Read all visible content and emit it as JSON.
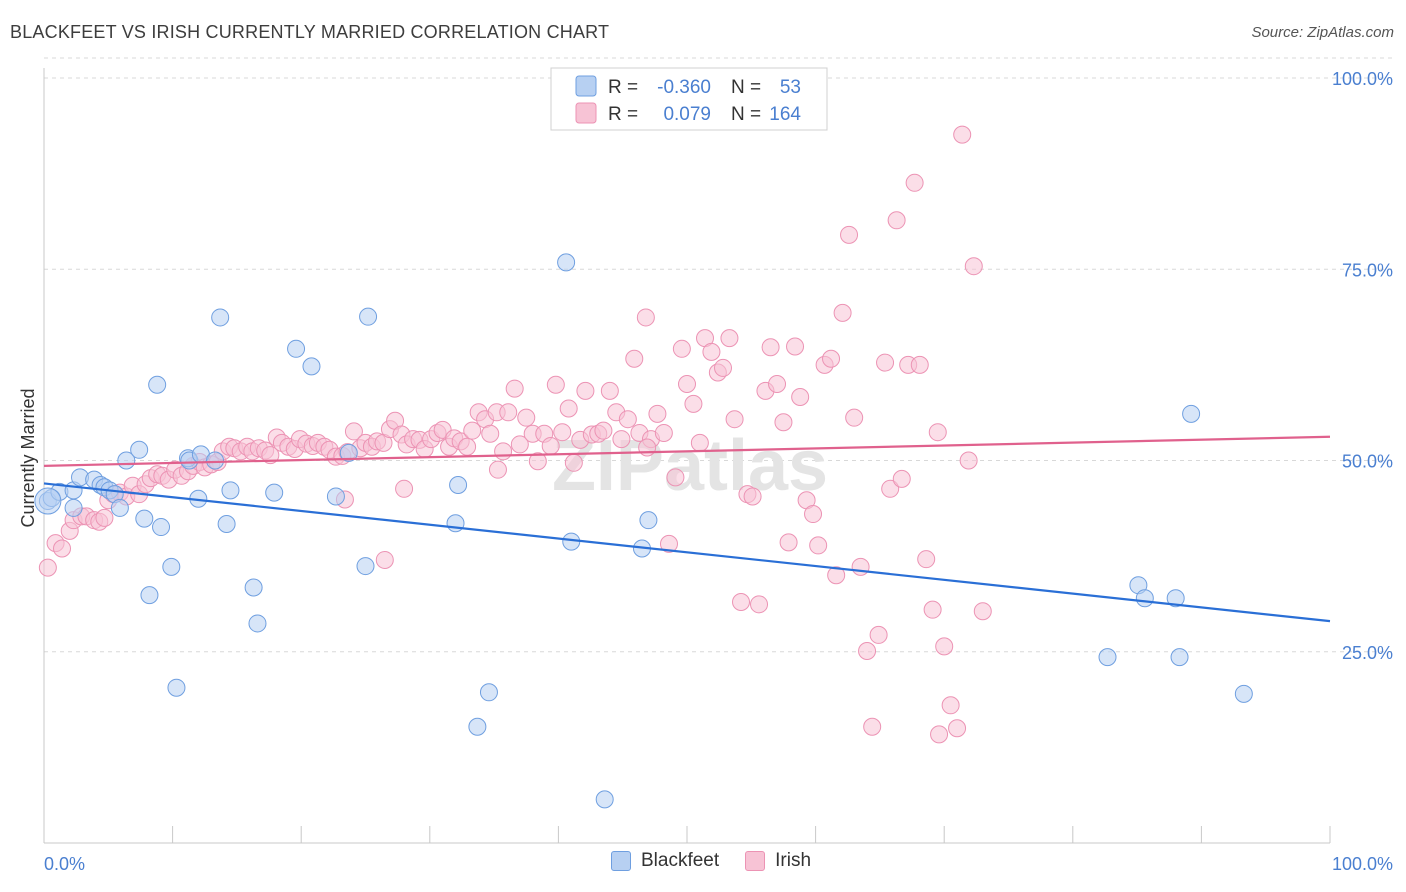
{
  "title": "BLACKFEET VS IRISH CURRENTLY MARRIED CORRELATION CHART",
  "source": "Source: ZipAtlas.com",
  "watermark": "ZIPatlas",
  "colors": {
    "blue_fill": "#b7d0f2",
    "blue_stroke": "#6f9fe0",
    "blue_line": "#2a6fd6",
    "pink_fill": "#f7c3d5",
    "pink_stroke": "#ec93b4",
    "pink_line": "#e0618d",
    "axis_text": "#4a7fd0",
    "grid": "#d8d8d8"
  },
  "legend": {
    "rows": [
      {
        "r_label": "R =",
        "r_value": "-0.360",
        "n_label": "N =",
        "n_value": "53"
      },
      {
        "r_label": "R =",
        "r_value": "0.079",
        "n_label": "N =",
        "n_value": "164"
      }
    ]
  },
  "bottom_legend": [
    "Blackfeet",
    "Irish"
  ],
  "chart_data": {
    "type": "scatter",
    "title": "BLACKFEET VS IRISH CURRENTLY MARRIED CORRELATION CHART",
    "xlabel": "",
    "ylabel": "Currently Married",
    "xlim": [
      0,
      100
    ],
    "ylim": [
      0,
      100
    ],
    "x_tick_labels": [
      "0.0%",
      "100.0%"
    ],
    "y_tick_labels": [
      "25.0%",
      "50.0%",
      "75.0%",
      "100.0%"
    ],
    "y_ticks": [
      25,
      50,
      75,
      100
    ],
    "grid": true,
    "legend_position": "top-center",
    "series": [
      {
        "name": "Blackfeet",
        "r": -0.36,
        "n": 53,
        "trend": {
          "x": [
            0,
            100
          ],
          "y": [
            47.0,
            29.0
          ]
        },
        "points": [
          [
            0.3,
            44.7
          ],
          [
            0.6,
            45.1
          ],
          [
            1.2,
            45.9
          ],
          [
            2.3,
            43.8
          ],
          [
            2.3,
            46.1
          ],
          [
            2.8,
            47.8
          ],
          [
            3.9,
            47.5
          ],
          [
            4.4,
            46.8
          ],
          [
            4.7,
            46.5
          ],
          [
            5.1,
            46.1
          ],
          [
            5.5,
            45.6
          ],
          [
            5.9,
            43.8
          ],
          [
            6.4,
            50.0
          ],
          [
            7.4,
            51.4
          ],
          [
            7.8,
            42.4
          ],
          [
            8.2,
            32.4
          ],
          [
            8.8,
            59.9
          ],
          [
            9.1,
            41.3
          ],
          [
            9.9,
            36.1
          ],
          [
            10.3,
            20.3
          ],
          [
            11.2,
            50.3
          ],
          [
            11.3,
            50.0
          ],
          [
            12.0,
            45.0
          ],
          [
            12.2,
            50.8
          ],
          [
            13.3,
            50.0
          ],
          [
            13.7,
            68.7
          ],
          [
            14.2,
            41.7
          ],
          [
            14.5,
            46.1
          ],
          [
            16.3,
            33.4
          ],
          [
            16.6,
            28.7
          ],
          [
            17.9,
            45.8
          ],
          [
            19.6,
            64.6
          ],
          [
            20.8,
            62.3
          ],
          [
            22.7,
            45.3
          ],
          [
            23.7,
            51.0
          ],
          [
            25.0,
            36.2
          ],
          [
            25.2,
            68.8
          ],
          [
            32.0,
            41.8
          ],
          [
            32.2,
            46.8
          ],
          [
            33.7,
            15.2
          ],
          [
            34.6,
            19.7
          ],
          [
            40.6,
            75.9
          ],
          [
            41.0,
            39.4
          ],
          [
            43.6,
            5.7
          ],
          [
            46.5,
            38.5
          ],
          [
            47.0,
            42.2
          ],
          [
            82.7,
            24.3
          ],
          [
            85.1,
            33.7
          ],
          [
            85.6,
            32.0
          ],
          [
            89.2,
            56.1
          ],
          [
            88.0,
            32.0
          ],
          [
            88.3,
            24.3
          ],
          [
            93.3,
            19.5
          ]
        ]
      },
      {
        "name": "Irish",
        "r": 0.079,
        "n": 164,
        "trend": {
          "x": [
            0,
            100
          ],
          "y": [
            49.3,
            53.1
          ]
        },
        "points": [
          [
            0.3,
            36.0
          ],
          [
            0.9,
            39.2
          ],
          [
            1.4,
            38.5
          ],
          [
            2.0,
            40.8
          ],
          [
            2.3,
            42.2
          ],
          [
            2.9,
            42.7
          ],
          [
            3.3,
            42.7
          ],
          [
            3.9,
            42.2
          ],
          [
            4.3,
            42.0
          ],
          [
            4.7,
            42.5
          ],
          [
            5.0,
            44.8
          ],
          [
            5.4,
            45.6
          ],
          [
            5.9,
            45.8
          ],
          [
            6.4,
            45.3
          ],
          [
            6.9,
            46.7
          ],
          [
            7.4,
            45.6
          ],
          [
            7.9,
            46.9
          ],
          [
            8.3,
            47.7
          ],
          [
            8.8,
            48.2
          ],
          [
            9.2,
            48.0
          ],
          [
            9.7,
            47.5
          ],
          [
            10.2,
            48.8
          ],
          [
            10.7,
            48.0
          ],
          [
            11.2,
            48.6
          ],
          [
            11.6,
            49.3
          ],
          [
            12.1,
            49.8
          ],
          [
            12.5,
            49.1
          ],
          [
            13.0,
            49.5
          ],
          [
            13.5,
            49.8
          ],
          [
            13.9,
            51.2
          ],
          [
            14.4,
            51.8
          ],
          [
            14.8,
            51.6
          ],
          [
            15.3,
            51.2
          ],
          [
            15.8,
            51.8
          ],
          [
            16.2,
            51.2
          ],
          [
            16.7,
            51.6
          ],
          [
            17.2,
            51.3
          ],
          [
            17.6,
            50.7
          ],
          [
            18.1,
            53.0
          ],
          [
            18.5,
            52.3
          ],
          [
            19.0,
            51.8
          ],
          [
            19.5,
            51.5
          ],
          [
            19.9,
            52.8
          ],
          [
            20.4,
            52.2
          ],
          [
            20.9,
            51.9
          ],
          [
            21.3,
            52.3
          ],
          [
            21.8,
            51.8
          ],
          [
            22.2,
            51.4
          ],
          [
            22.7,
            50.5
          ],
          [
            23.2,
            50.6
          ],
          [
            23.6,
            51.1
          ],
          [
            24.1,
            53.8
          ],
          [
            24.6,
            51.6
          ],
          [
            25.0,
            52.3
          ],
          [
            25.5,
            51.8
          ],
          [
            25.9,
            52.5
          ],
          [
            26.4,
            52.3
          ],
          [
            26.9,
            54.1
          ],
          [
            27.3,
            55.2
          ],
          [
            27.8,
            53.4
          ],
          [
            28.2,
            52.1
          ],
          [
            28.7,
            52.8
          ],
          [
            29.2,
            52.7
          ],
          [
            29.6,
            51.5
          ],
          [
            30.1,
            52.8
          ],
          [
            30.6,
            53.6
          ],
          [
            31.0,
            54.0
          ],
          [
            31.5,
            51.8
          ],
          [
            31.9,
            52.9
          ],
          [
            32.4,
            52.5
          ],
          [
            32.9,
            51.8
          ],
          [
            33.3,
            53.9
          ],
          [
            33.8,
            56.3
          ],
          [
            34.3,
            55.4
          ],
          [
            34.7,
            53.5
          ],
          [
            35.2,
            56.3
          ],
          [
            35.7,
            51.2
          ],
          [
            36.1,
            56.3
          ],
          [
            36.6,
            59.4
          ],
          [
            37.0,
            52.1
          ],
          [
            37.5,
            55.6
          ],
          [
            38.0,
            53.5
          ],
          [
            38.4,
            49.9
          ],
          [
            38.9,
            53.5
          ],
          [
            39.4,
            51.9
          ],
          [
            39.8,
            59.9
          ],
          [
            40.3,
            53.7
          ],
          [
            40.8,
            56.8
          ],
          [
            41.2,
            49.7
          ],
          [
            41.7,
            52.7
          ],
          [
            42.1,
            59.1
          ],
          [
            42.6,
            53.4
          ],
          [
            43.1,
            53.5
          ],
          [
            43.5,
            53.9
          ],
          [
            44.0,
            59.1
          ],
          [
            44.5,
            56.3
          ],
          [
            44.9,
            52.8
          ],
          [
            45.4,
            55.4
          ],
          [
            45.9,
            63.3
          ],
          [
            46.3,
            53.6
          ],
          [
            46.8,
            68.7
          ],
          [
            47.2,
            52.8
          ],
          [
            47.7,
            56.1
          ],
          [
            48.2,
            53.6
          ],
          [
            48.6,
            39.1
          ],
          [
            49.1,
            47.8
          ],
          [
            49.6,
            64.6
          ],
          [
            50.0,
            60.0
          ],
          [
            50.5,
            57.4
          ],
          [
            51.0,
            52.3
          ],
          [
            51.4,
            66.0
          ],
          [
            51.9,
            64.2
          ],
          [
            52.4,
            61.5
          ],
          [
            52.8,
            62.1
          ],
          [
            53.3,
            66.0
          ],
          [
            53.7,
            55.4
          ],
          [
            54.2,
            31.5
          ],
          [
            54.7,
            45.6
          ],
          [
            55.1,
            45.3
          ],
          [
            55.6,
            31.2
          ],
          [
            56.1,
            59.1
          ],
          [
            56.5,
            64.8
          ],
          [
            57.0,
            60.0
          ],
          [
            57.5,
            55.0
          ],
          [
            57.9,
            39.3
          ],
          [
            58.4,
            64.9
          ],
          [
            58.8,
            58.3
          ],
          [
            59.3,
            44.8
          ],
          [
            59.8,
            43.0
          ],
          [
            60.2,
            38.9
          ],
          [
            60.7,
            62.5
          ],
          [
            61.2,
            63.3
          ],
          [
            61.6,
            35.0
          ],
          [
            62.1,
            69.3
          ],
          [
            62.6,
            79.5
          ],
          [
            63.0,
            55.6
          ],
          [
            63.5,
            36.1
          ],
          [
            64.0,
            25.1
          ],
          [
            64.4,
            15.2
          ],
          [
            64.9,
            27.2
          ],
          [
            65.4,
            62.8
          ],
          [
            65.8,
            46.3
          ],
          [
            66.3,
            81.4
          ],
          [
            66.7,
            47.6
          ],
          [
            67.2,
            62.5
          ],
          [
            67.7,
            86.3
          ],
          [
            68.1,
            62.5
          ],
          [
            68.6,
            37.1
          ],
          [
            69.1,
            30.5
          ],
          [
            69.6,
            14.2
          ],
          [
            70.0,
            25.7
          ],
          [
            70.5,
            18.0
          ],
          [
            71.0,
            15.0
          ],
          [
            71.4,
            92.6
          ],
          [
            71.9,
            50.0
          ],
          [
            72.3,
            75.4
          ],
          [
            73.0,
            30.3
          ],
          [
            23.4,
            44.9
          ],
          [
            26.5,
            37.0
          ],
          [
            28.0,
            46.3
          ],
          [
            35.3,
            48.8
          ],
          [
            46.9,
            51.7
          ],
          [
            69.5,
            53.7
          ]
        ]
      }
    ]
  }
}
